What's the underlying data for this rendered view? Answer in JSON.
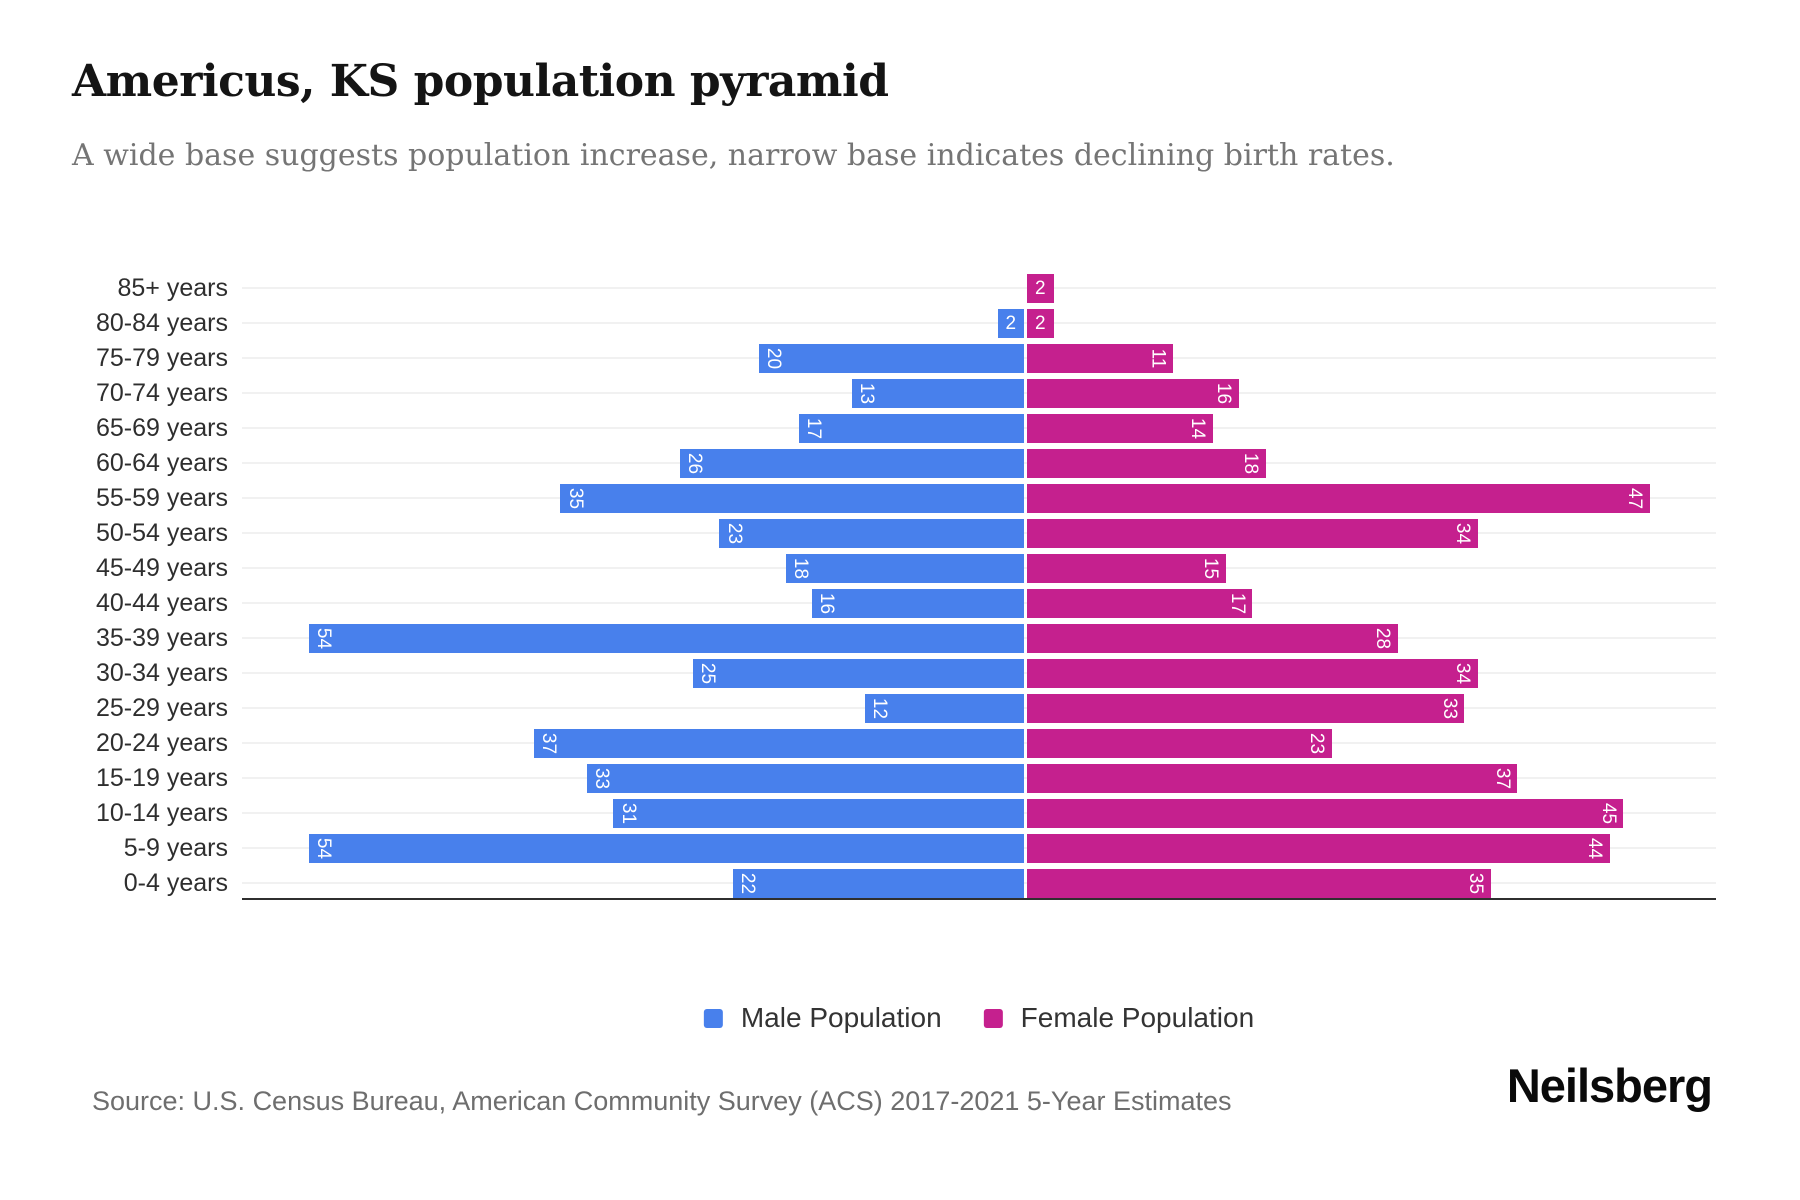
{
  "title": "Americus, KS population pyramid",
  "subtitle": "A wide base suggests population increase, narrow base indicates declining birth rates.",
  "source": "Source: U.S. Census Bureau, American Community Survey (ACS) 2017-2021 5-Year Estimates",
  "brand": "Neilsberg",
  "legend": {
    "male_label": "Male Population",
    "female_label": "Female Population"
  },
  "colors": {
    "male": "#4880EC",
    "female": "#C5208E",
    "grid": "#f1f1f1",
    "axis": "#2f2f2f",
    "title": "#141414",
    "subtitle": "#757575",
    "source_text": "#6e6e6e",
    "axis_label": "#2e2e2e",
    "bar_value_text": "#ffffff"
  },
  "chart_data": {
    "type": "bar",
    "subtype": "population-pyramid",
    "orientation": "horizontal",
    "title": "Americus, KS population pyramid",
    "xlabel": "",
    "ylabel": "",
    "grid": "horizontal-per-category",
    "legend_position": "bottom-center",
    "value_labels": "inside-bar-ends, white, rotated 90deg when two digits",
    "axis_extent_units": {
      "male_left_max": 59,
      "female_right_max": 52
    },
    "categories": [
      "85+ years",
      "80-84 years",
      "75-79 years",
      "70-74 years",
      "65-69 years",
      "60-64 years",
      "55-59 years",
      "50-54 years",
      "45-49 years",
      "40-44 years",
      "35-39 years",
      "30-34 years",
      "25-29 years",
      "20-24 years",
      "15-19 years",
      "10-14 years",
      "5-9 years",
      "0-4 years"
    ],
    "series": [
      {
        "name": "Male Population",
        "side": "left",
        "values": [
          0,
          2,
          20,
          13,
          17,
          26,
          35,
          23,
          18,
          16,
          54,
          25,
          12,
          37,
          33,
          31,
          54,
          22
        ]
      },
      {
        "name": "Female Population",
        "side": "right",
        "values": [
          2,
          2,
          11,
          16,
          14,
          18,
          47,
          34,
          15,
          17,
          28,
          34,
          33,
          23,
          37,
          45,
          44,
          35
        ]
      }
    ]
  }
}
